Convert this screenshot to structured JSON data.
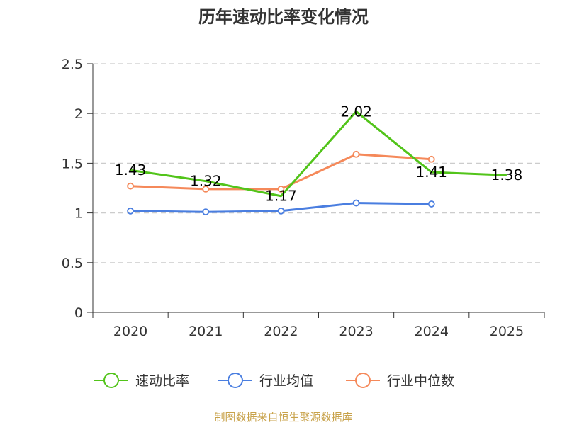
{
  "chart_data": {
    "type": "line",
    "title": "历年速动比率变化情况",
    "categories": [
      "2020",
      "2021",
      "2022",
      "2023",
      "2024",
      "2025"
    ],
    "ylim": [
      0,
      2.5
    ],
    "yticks": [
      "0",
      "0.5",
      "1",
      "1.5",
      "2",
      "2.5"
    ],
    "ytick_values": [
      0,
      0.5,
      1,
      1.5,
      2,
      2.5
    ],
    "grid": true,
    "legend_position": "bottom",
    "series": [
      {
        "name": "速动比率",
        "color": "#52c41a",
        "marker": false,
        "values": [
          1.43,
          1.32,
          1.17,
          2.02,
          1.41,
          1.38
        ],
        "labels": [
          "1.43",
          "1.32",
          "1.17",
          "2.02",
          "1.41",
          "1.38"
        ]
      },
      {
        "name": "行业均值",
        "color": "#4a7ee0",
        "marker": true,
        "values": [
          1.02,
          1.01,
          1.02,
          1.1,
          1.09,
          null
        ]
      },
      {
        "name": "行业中位数",
        "color": "#f5895a",
        "marker": true,
        "values": [
          1.27,
          1.24,
          1.24,
          1.59,
          1.54,
          null
        ]
      }
    ]
  },
  "source_text": "制图数据来自恒生聚源数据库"
}
